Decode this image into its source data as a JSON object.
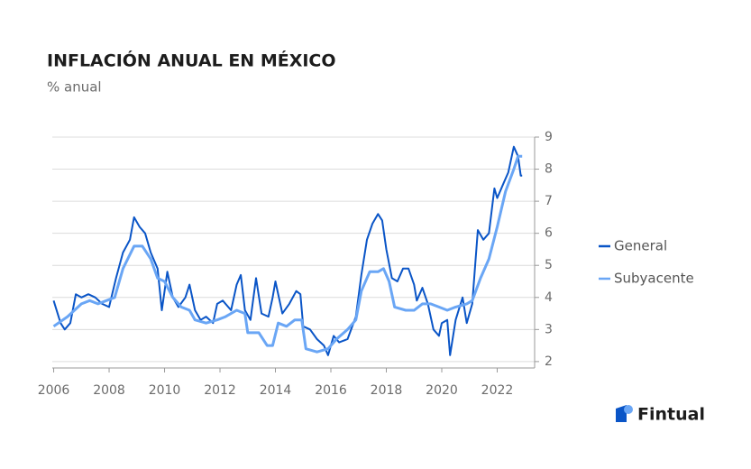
{
  "chart_data": {
    "type": "line",
    "title": "INFLACIÓN ANUAL EN MÉXICO",
    "subtitle": "% anual",
    "brand": "Fintual",
    "xlim": [
      2005.95,
      2023.35
    ],
    "xticks": [
      2006,
      2008,
      2010,
      2012,
      2014,
      2016,
      2018,
      2020,
      2022
    ],
    "ylim": [
      1.8,
      9
    ],
    "yticks": [
      2,
      3,
      4,
      5,
      6,
      7,
      8,
      9
    ],
    "grid": true,
    "legend": "right",
    "series": [
      {
        "name": "General",
        "color": "#0a55c7",
        "x": [
          2006.0,
          2006.25,
          2006.4,
          2006.6,
          2006.8,
          2007.0,
          2007.25,
          2007.5,
          2007.75,
          2008.0,
          2008.25,
          2008.5,
          2008.75,
          2008.9,
          2009.1,
          2009.3,
          2009.5,
          2009.75,
          2009.9,
          2010.1,
          2010.3,
          2010.5,
          2010.75,
          2010.9,
          2011.1,
          2011.3,
          2011.5,
          2011.75,
          2011.9,
          2012.1,
          2012.4,
          2012.6,
          2012.75,
          2012.9,
          2013.1,
          2013.3,
          2013.5,
          2013.75,
          2013.9,
          2014.0,
          2014.25,
          2014.5,
          2014.75,
          2014.9,
          2015.0,
          2015.25,
          2015.5,
          2015.75,
          2015.9,
          2016.1,
          2016.3,
          2016.6,
          2016.9,
          2017.1,
          2017.3,
          2017.5,
          2017.7,
          2017.85,
          2018.0,
          2018.2,
          2018.4,
          2018.6,
          2018.8,
          2019.0,
          2019.1,
          2019.3,
          2019.5,
          2019.7,
          2019.9,
          2020.0,
          2020.2,
          2020.3,
          2020.5,
          2020.75,
          2020.9,
          2021.1,
          2021.3,
          2021.5,
          2021.7,
          2021.9,
          2022.0,
          2022.2,
          2022.4,
          2022.6,
          2022.75,
          2022.85,
          2022.9
        ],
        "values": [
          3.9,
          3.2,
          3.0,
          3.2,
          4.1,
          4.0,
          4.1,
          4.0,
          3.8,
          3.7,
          4.6,
          5.4,
          5.8,
          6.5,
          6.2,
          6.0,
          5.4,
          4.9,
          3.6,
          4.8,
          4.0,
          3.7,
          4.0,
          4.4,
          3.6,
          3.3,
          3.4,
          3.2,
          3.8,
          3.9,
          3.6,
          4.4,
          4.7,
          3.6,
          3.3,
          4.6,
          3.5,
          3.4,
          4.0,
          4.5,
          3.5,
          3.8,
          4.2,
          4.1,
          3.1,
          3.0,
          2.7,
          2.5,
          2.2,
          2.8,
          2.6,
          2.7,
          3.4,
          4.7,
          5.8,
          6.3,
          6.6,
          6.4,
          5.5,
          4.6,
          4.5,
          4.9,
          4.9,
          4.4,
          3.9,
          4.3,
          3.8,
          3.0,
          2.8,
          3.2,
          3.3,
          2.2,
          3.3,
          4.0,
          3.2,
          3.8,
          6.1,
          5.8,
          6.0,
          7.4,
          7.1,
          7.5,
          7.9,
          8.7,
          8.4,
          7.8,
          7.8
        ]
      },
      {
        "name": "Subyacente",
        "color": "#6aa6f5",
        "x": [
          2006.0,
          2006.5,
          2007.0,
          2007.3,
          2007.6,
          2007.9,
          2008.2,
          2008.5,
          2008.9,
          2009.2,
          2009.5,
          2009.75,
          2010.0,
          2010.3,
          2010.6,
          2010.9,
          2011.1,
          2011.5,
          2011.9,
          2012.2,
          2012.6,
          2012.9,
          2013.0,
          2013.4,
          2013.7,
          2013.9,
          2014.1,
          2014.4,
          2014.7,
          2014.95,
          2015.1,
          2015.5,
          2015.9,
          2016.2,
          2016.6,
          2016.9,
          2017.1,
          2017.4,
          2017.7,
          2017.9,
          2018.1,
          2018.3,
          2018.7,
          2019.0,
          2019.3,
          2019.6,
          2019.9,
          2020.2,
          2020.5,
          2020.9,
          2021.1,
          2021.4,
          2021.7,
          2022.0,
          2022.3,
          2022.6,
          2022.75,
          2022.9
        ],
        "values": [
          3.1,
          3.4,
          3.8,
          3.9,
          3.8,
          3.9,
          4.0,
          4.9,
          5.6,
          5.6,
          5.2,
          4.6,
          4.5,
          4.0,
          3.7,
          3.6,
          3.3,
          3.2,
          3.3,
          3.4,
          3.6,
          3.5,
          2.9,
          2.9,
          2.5,
          2.5,
          3.2,
          3.1,
          3.3,
          3.3,
          2.4,
          2.3,
          2.4,
          2.7,
          3.0,
          3.3,
          4.2,
          4.8,
          4.8,
          4.9,
          4.5,
          3.7,
          3.6,
          3.6,
          3.8,
          3.8,
          3.7,
          3.6,
          3.7,
          3.8,
          3.9,
          4.6,
          5.2,
          6.2,
          7.3,
          8.0,
          8.4,
          8.4
        ]
      }
    ]
  }
}
